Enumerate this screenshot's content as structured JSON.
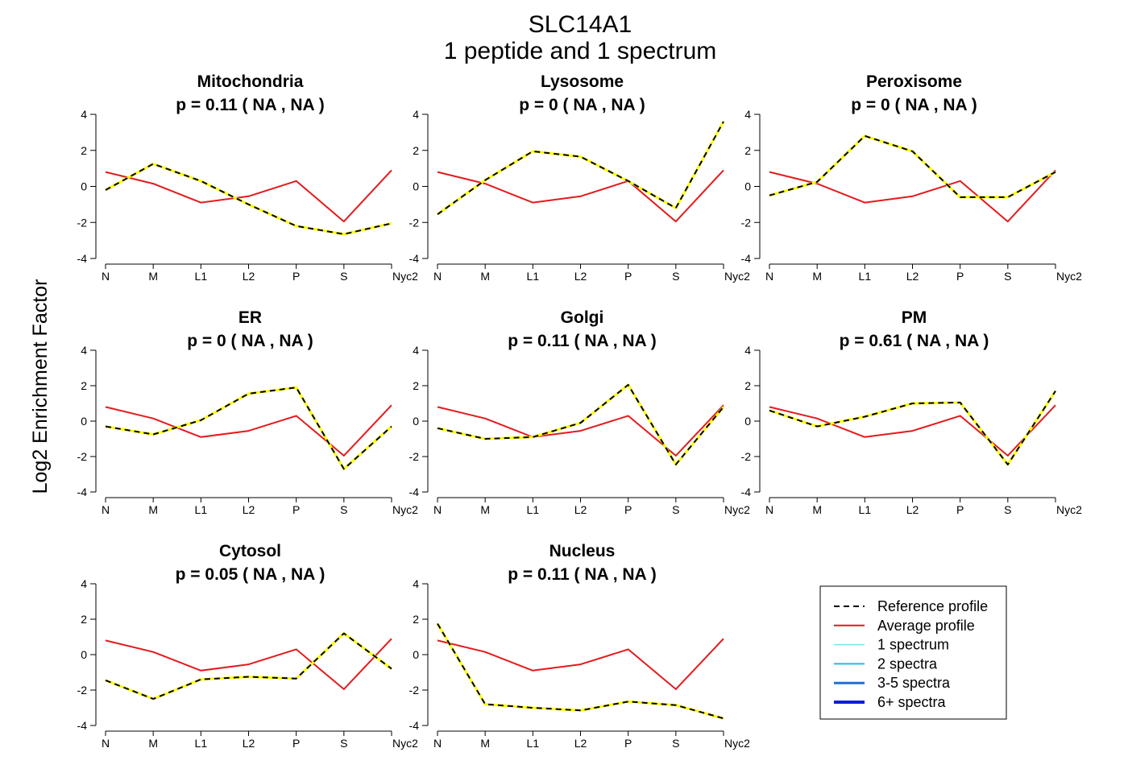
{
  "figure": {
    "title_line1": "SLC14A1",
    "title_line2": "1  peptide and  1  spectrum",
    "ylabel": "Log2 Enrichment Factor"
  },
  "colors": {
    "reference": "#000000",
    "reference_overlay": "#ffff00",
    "average": "#e41a1c",
    "spectrum_1": "#7fdff0",
    "spectrum_2": "#29b6e8",
    "spectrum_3_5": "#1f6fd6",
    "spectrum_6plus": "#0a1fd8"
  },
  "legend": {
    "items": [
      {
        "label": "Reference profile",
        "style": "dashed",
        "color": "#000000",
        "width": 2
      },
      {
        "label": "Average profile",
        "style": "solid",
        "color": "#e41a1c",
        "width": 2
      },
      {
        "label": "1 spectrum",
        "style": "solid",
        "color": "#7fdff0",
        "width": 1.5
      },
      {
        "label": "2 spectra",
        "style": "solid",
        "color": "#29b6e8",
        "width": 2
      },
      {
        "label": "3-5 spectra",
        "style": "solid",
        "color": "#1f6fd6",
        "width": 3
      },
      {
        "label": "6+ spectra",
        "style": "solid",
        "color": "#0a1fd8",
        "width": 4
      }
    ]
  },
  "chart_data": [
    {
      "type": "line",
      "title": "Mitochondria",
      "subtitle": "p =  0.11  ( NA ,  NA )",
      "categories": [
        "N",
        "M",
        "L1",
        "L2",
        "P",
        "S",
        "Nyc2"
      ],
      "ylim": [
        -4,
        4
      ],
      "yticks": [
        -4,
        -2,
        0,
        2,
        4
      ],
      "series": [
        {
          "name": "Reference profile",
          "values": [
            -0.2,
            1.25,
            0.3,
            -1.0,
            -2.2,
            -2.65,
            -2.05
          ]
        },
        {
          "name": "Average profile",
          "values": [
            0.8,
            0.15,
            -0.9,
            -0.55,
            0.3,
            -1.95,
            0.9
          ]
        }
      ]
    },
    {
      "type": "line",
      "title": "Lysosome",
      "subtitle": "p =  0  ( NA ,  NA )",
      "categories": [
        "N",
        "M",
        "L1",
        "L2",
        "P",
        "S",
        "Nyc2"
      ],
      "ylim": [
        -4,
        4
      ],
      "yticks": [
        -4,
        -2,
        0,
        2,
        4
      ],
      "series": [
        {
          "name": "Reference profile",
          "values": [
            -1.55,
            0.35,
            1.95,
            1.65,
            0.3,
            -1.2,
            3.6
          ]
        },
        {
          "name": "Average profile",
          "values": [
            0.8,
            0.15,
            -0.9,
            -0.55,
            0.3,
            -1.95,
            0.9
          ]
        }
      ]
    },
    {
      "type": "line",
      "title": "Peroxisome",
      "subtitle": "p =  0  ( NA ,  NA )",
      "categories": [
        "N",
        "M",
        "L1",
        "L2",
        "P",
        "S",
        "Nyc2"
      ],
      "ylim": [
        -4,
        4
      ],
      "yticks": [
        -4,
        -2,
        0,
        2,
        4
      ],
      "series": [
        {
          "name": "Reference profile",
          "values": [
            -0.5,
            0.25,
            2.8,
            1.95,
            -0.6,
            -0.6,
            0.8
          ]
        },
        {
          "name": "Average profile",
          "values": [
            0.8,
            0.15,
            -0.9,
            -0.55,
            0.3,
            -1.95,
            0.9
          ]
        }
      ]
    },
    {
      "type": "line",
      "title": "ER",
      "subtitle": "p =  0  ( NA ,  NA )",
      "categories": [
        "N",
        "M",
        "L1",
        "L2",
        "P",
        "S",
        "Nyc2"
      ],
      "ylim": [
        -4,
        4
      ],
      "yticks": [
        -4,
        -2,
        0,
        2,
        4
      ],
      "series": [
        {
          "name": "Reference profile",
          "values": [
            -0.3,
            -0.75,
            0.05,
            1.55,
            1.9,
            -2.7,
            -0.3
          ]
        },
        {
          "name": "Average profile",
          "values": [
            0.8,
            0.15,
            -0.9,
            -0.55,
            0.3,
            -1.95,
            0.9
          ]
        }
      ]
    },
    {
      "type": "line",
      "title": "Golgi",
      "subtitle": "p =  0.11  ( NA ,  NA )",
      "categories": [
        "N",
        "M",
        "L1",
        "L2",
        "P",
        "S",
        "Nyc2"
      ],
      "ylim": [
        -4,
        4
      ],
      "yticks": [
        -4,
        -2,
        0,
        2,
        4
      ],
      "series": [
        {
          "name": "Reference profile",
          "values": [
            -0.4,
            -1.0,
            -0.9,
            -0.1,
            2.05,
            -2.45,
            0.8
          ]
        },
        {
          "name": "Average profile",
          "values": [
            0.8,
            0.15,
            -0.9,
            -0.55,
            0.3,
            -1.95,
            0.9
          ]
        }
      ]
    },
    {
      "type": "line",
      "title": "PM",
      "subtitle": "p =  0.61  ( NA ,  NA )",
      "categories": [
        "N",
        "M",
        "L1",
        "L2",
        "P",
        "S",
        "Nyc2"
      ],
      "ylim": [
        -4,
        4
      ],
      "yticks": [
        -4,
        -2,
        0,
        2,
        4
      ],
      "series": [
        {
          "name": "Reference profile",
          "values": [
            0.6,
            -0.3,
            0.25,
            1.0,
            1.05,
            -2.45,
            1.7
          ]
        },
        {
          "name": "Average profile",
          "values": [
            0.8,
            0.15,
            -0.9,
            -0.55,
            0.3,
            -1.95,
            0.9
          ]
        }
      ]
    },
    {
      "type": "line",
      "title": "Cytosol",
      "subtitle": "p =  0.05  ( NA ,  NA )",
      "categories": [
        "N",
        "M",
        "L1",
        "L2",
        "P",
        "S",
        "Nyc2"
      ],
      "ylim": [
        -4,
        4
      ],
      "yticks": [
        -4,
        -2,
        0,
        2,
        4
      ],
      "series": [
        {
          "name": "Reference profile",
          "values": [
            -1.45,
            -2.5,
            -1.4,
            -1.25,
            -1.35,
            1.2,
            -0.8
          ]
        },
        {
          "name": "Average profile",
          "values": [
            0.8,
            0.15,
            -0.9,
            -0.55,
            0.3,
            -1.95,
            0.9
          ]
        }
      ]
    },
    {
      "type": "line",
      "title": "Nucleus",
      "subtitle": "p =  0.11  ( NA ,  NA )",
      "categories": [
        "N",
        "M",
        "L1",
        "L2",
        "P",
        "S",
        "Nyc2"
      ],
      "ylim": [
        -4,
        4
      ],
      "yticks": [
        -4,
        -2,
        0,
        2,
        4
      ],
      "series": [
        {
          "name": "Reference profile",
          "values": [
            1.75,
            -2.8,
            -3.0,
            -3.15,
            -2.65,
            -2.85,
            -3.6
          ]
        },
        {
          "name": "Average profile",
          "values": [
            0.8,
            0.15,
            -0.9,
            -0.55,
            0.3,
            -1.95,
            0.9
          ]
        }
      ]
    }
  ]
}
